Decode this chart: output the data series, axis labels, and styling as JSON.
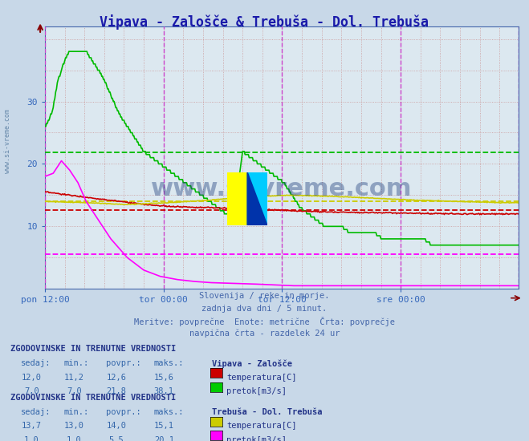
{
  "title": "Vipava - Zalošče & Trebuša - Dol. Trebuša",
  "title_color": "#1a1aaa",
  "bg_color": "#c8d8e8",
  "plot_bg_color": "#dce8f0",
  "ylabel_color": "#3366bb",
  "xlabel_color": "#3366bb",
  "ymin": 0,
  "ymax": 42,
  "yticks": [
    10,
    20,
    30
  ],
  "num_points": 576,
  "x_tick_labels": [
    "pon 12:00",
    "tor 00:00",
    "tor 12:00",
    "sre 00:00"
  ],
  "x_tick_positions": [
    0,
    144,
    288,
    432
  ],
  "avg_green_val": 21.8,
  "avg_red_val": 12.6,
  "avg_yellow_val": 14.0,
  "avg_magenta_val": 5.5,
  "subtitle_lines": [
    "Slovenija / reke in morje.",
    "zadnja dva dni / 5 minut.",
    "Meritve: povprečne  Enote: metrične  Črta: povprečje",
    "navpična črta - razdelek 24 ur"
  ],
  "table1_title": "ZGODOVINSKE IN TRENUTNE VREDNOSTI",
  "table1_station": "Vipava - Zalošče",
  "table1_headers": [
    "sedaj:",
    "min.:",
    "povpr.:",
    "maks.:"
  ],
  "table1_rows": [
    {
      "sedaj": "12,0",
      "min": "11,2",
      "povpr": "12,6",
      "maks": "15,6",
      "color": "#cc0000",
      "label": "temperatura[C]"
    },
    {
      "sedaj": "7,0",
      "min": "7,0",
      "povpr": "21,8",
      "maks": "38,1",
      "color": "#00cc00",
      "label": "pretok[m3/s]"
    }
  ],
  "table2_title": "ZGODOVINSKE IN TRENUTNE VREDNOSTI",
  "table2_station": "Trebuša - Dol. Trebuša",
  "table2_rows": [
    {
      "sedaj": "13,7",
      "min": "13,0",
      "povpr": "14,0",
      "maks": "15,1",
      "color": "#cccc00",
      "label": "temperatura[C]"
    },
    {
      "sedaj": "1,0",
      "min": "1,0",
      "povpr": "5,5",
      "maks": "20,1",
      "color": "#ff00ff",
      "label": "pretok[m3/s]"
    }
  ],
  "line_colors": {
    "pretok_vipava": "#00bb00",
    "temp_vipava": "#cc0000",
    "temp_trebusa": "#cccc00",
    "pretok_trebusa": "#ff00ff"
  },
  "avg_line_colors": {
    "green": "#00bb00",
    "red": "#cc0000",
    "yellow": "#cccc00",
    "magenta": "#ff00ff"
  },
  "grid_dotted_color": "#cc9999",
  "vline_color": "#cc44cc",
  "watermark": "www.si-vreme.com",
  "watermark_color": "#1a3a7a",
  "sidebar_text": "www.si-vreme.com",
  "sidebar_color": "#6688aa"
}
